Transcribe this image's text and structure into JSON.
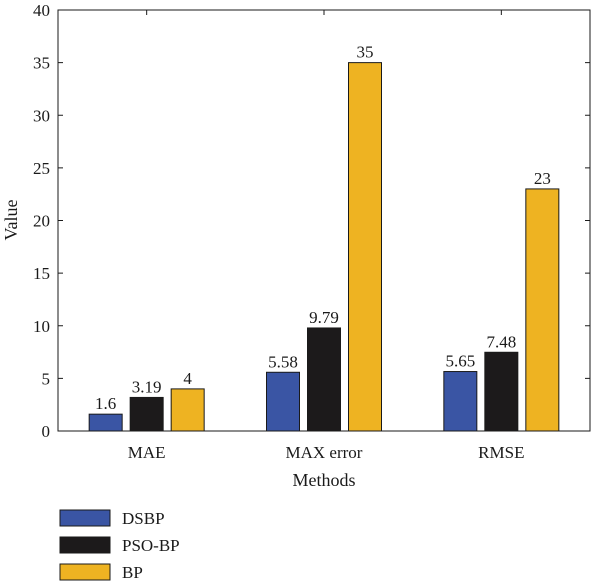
{
  "chart_data": {
    "type": "bar",
    "title": "",
    "xlabel": "Methods",
    "ylabel": "Value",
    "ylim": [
      0,
      40
    ],
    "yticks": [
      0,
      5,
      10,
      15,
      20,
      25,
      30,
      35,
      40
    ],
    "categories": [
      "MAE",
      "MAX error",
      "RMSE"
    ],
    "series": [
      {
        "name": "DSBP",
        "color": "#3a55a4",
        "values": [
          1.6,
          5.58,
          5.65
        ],
        "labels": [
          "1.6",
          "5.58",
          "5.65"
        ]
      },
      {
        "name": "PSO-BP",
        "color": "#1c1a1b",
        "values": [
          3.19,
          9.79,
          7.48
        ],
        "labels": [
          "3.19",
          "9.79",
          "7.48"
        ]
      },
      {
        "name": "BP",
        "color": "#eeb322",
        "values": [
          4,
          35,
          23
        ],
        "labels": [
          "4",
          "35",
          "23"
        ]
      }
    ],
    "grid": false,
    "legend_position": "bottom-left"
  }
}
